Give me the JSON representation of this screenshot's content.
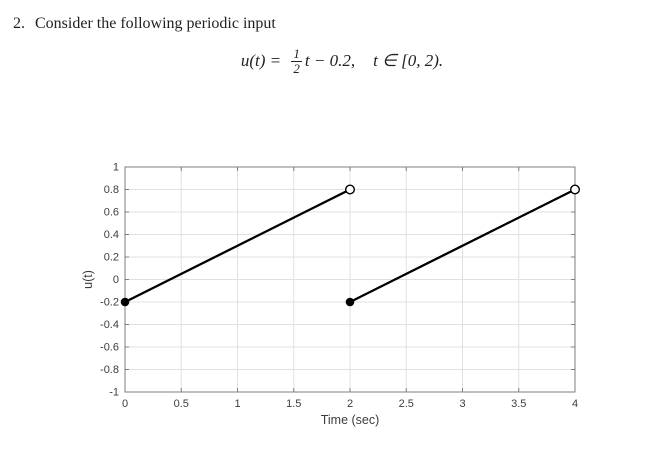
{
  "document": {
    "item_number": "2.",
    "prompt": "Consider the following periodic input",
    "equation": {
      "lhs": "u(t) = ",
      "numerator": "1",
      "denominator": "2",
      "after_fraction": "t − 0.2,",
      "condition": "t ∈ [0, 2)."
    }
  },
  "chart_data": {
    "type": "line",
    "title": "",
    "xlabel": "Time (sec)",
    "ylabel": "u(t)",
    "xlim": [
      0,
      4
    ],
    "ylim": [
      -1,
      1
    ],
    "xtick_labels": [
      "0",
      "0.5",
      "1",
      "1.5",
      "2",
      "2.5",
      "3",
      "3.5",
      "4"
    ],
    "ytick_labels": [
      "-1",
      "-0.8",
      "-0.6",
      "-0.4",
      "-0.2",
      "0",
      "0.2",
      "0.4",
      "0.6",
      "0.8",
      "1"
    ],
    "grid": true,
    "legend": "none",
    "series": [
      {
        "name": "ramp-segment-1",
        "x": [
          0,
          2
        ],
        "y": [
          -0.2,
          0.8
        ]
      },
      {
        "name": "ramp-segment-2",
        "x": [
          2,
          4
        ],
        "y": [
          -0.2,
          0.8
        ]
      }
    ],
    "markers": [
      {
        "x": 0,
        "y": -0.2,
        "style": "filled"
      },
      {
        "x": 2,
        "y": 0.8,
        "style": "open"
      },
      {
        "x": 2,
        "y": -0.2,
        "style": "filled"
      },
      {
        "x": 4,
        "y": 0.8,
        "style": "open"
      }
    ],
    "colors": {
      "line": "#000000",
      "grid": "#e0e0e0",
      "axis": "#7f7f7f",
      "tick_label": "#3d3d3d",
      "axis_label": "#3d3d3d",
      "marker_open_fill": "#ffffff"
    }
  }
}
